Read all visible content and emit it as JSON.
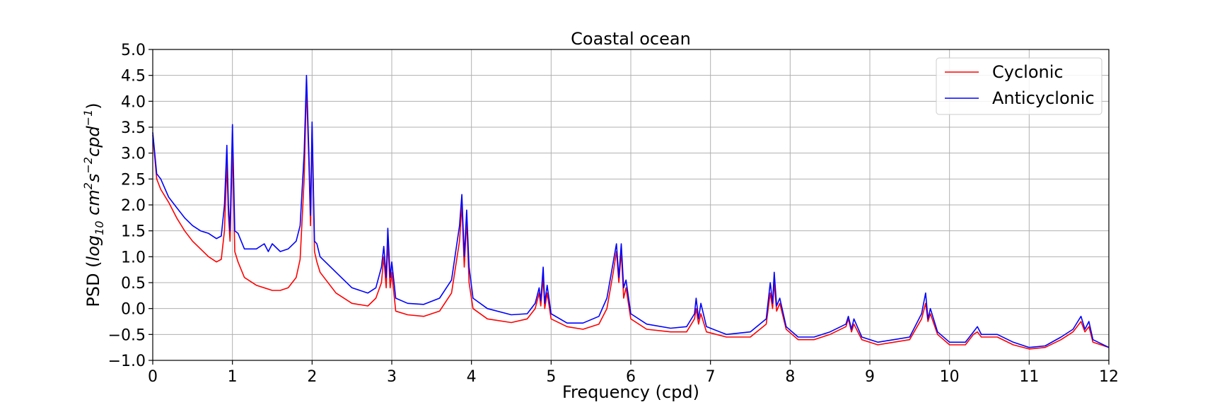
{
  "chart_data": {
    "type": "line",
    "title": "Coastal ocean",
    "xlabel": "Frequency (cpd)",
    "ylabel_prefix": "PSD (",
    "ylabel_log": "log",
    "ylabel_log_sub": "10",
    "ylabel_cm": " cm",
    "ylabel_cm_sup": "2",
    "ylabel_s": "s",
    "ylabel_s_sup": "−2",
    "ylabel_cpd": "cpd",
    "ylabel_cpd_sup": "−1",
    "ylabel_suffix": ")",
    "xlim": [
      0,
      12
    ],
    "ylim": [
      -1.0,
      5.0
    ],
    "grid": true,
    "legend_position": "top-right",
    "x_ticks": [
      0,
      1,
      2,
      3,
      4,
      5,
      6,
      7,
      8,
      9,
      10,
      11,
      12
    ],
    "x_tick_labels": [
      "0",
      "1",
      "2",
      "3",
      "4",
      "5",
      "6",
      "7",
      "8",
      "9",
      "10",
      "11",
      "12"
    ],
    "y_ticks": [
      -1.0,
      -0.5,
      0.0,
      0.5,
      1.0,
      1.5,
      2.0,
      2.5,
      3.0,
      3.5,
      4.0,
      4.5,
      5.0
    ],
    "y_tick_labels": [
      "−1.0",
      "−0.5",
      "0.0",
      "0.5",
      "1.0",
      "1.5",
      "2.0",
      "2.5",
      "3.0",
      "3.5",
      "4.0",
      "4.5",
      "5.0"
    ],
    "series": [
      {
        "name": "Cyclonic",
        "color": "#ff0000",
        "points": [
          [
            0.0,
            3.35
          ],
          [
            0.05,
            2.5
          ],
          [
            0.1,
            2.3
          ],
          [
            0.2,
            2.05
          ],
          [
            0.3,
            1.75
          ],
          [
            0.4,
            1.5
          ],
          [
            0.5,
            1.3
          ],
          [
            0.6,
            1.15
          ],
          [
            0.7,
            1.0
          ],
          [
            0.8,
            0.9
          ],
          [
            0.86,
            0.95
          ],
          [
            0.9,
            1.5
          ],
          [
            0.93,
            2.8
          ],
          [
            0.95,
            1.8
          ],
          [
            0.97,
            1.3
          ],
          [
            1.0,
            3.15
          ],
          [
            1.03,
            1.1
          ],
          [
            1.07,
            0.9
          ],
          [
            1.15,
            0.6
          ],
          [
            1.3,
            0.45
          ],
          [
            1.5,
            0.35
          ],
          [
            1.6,
            0.35
          ],
          [
            1.7,
            0.4
          ],
          [
            1.8,
            0.6
          ],
          [
            1.85,
            0.95
          ],
          [
            1.9,
            2.5
          ],
          [
            1.93,
            4.3
          ],
          [
            1.96,
            2.8
          ],
          [
            1.98,
            1.6
          ],
          [
            2.0,
            3.5
          ],
          [
            2.03,
            1.1
          ],
          [
            2.06,
            0.9
          ],
          [
            2.1,
            0.7
          ],
          [
            2.3,
            0.3
          ],
          [
            2.5,
            0.1
          ],
          [
            2.7,
            0.05
          ],
          [
            2.8,
            0.2
          ],
          [
            2.87,
            0.5
          ],
          [
            2.9,
            1.0
          ],
          [
            2.93,
            0.4
          ],
          [
            2.95,
            1.3
          ],
          [
            2.98,
            0.4
          ],
          [
            3.0,
            0.7
          ],
          [
            3.05,
            -0.05
          ],
          [
            3.2,
            -0.12
          ],
          [
            3.4,
            -0.15
          ],
          [
            3.6,
            -0.05
          ],
          [
            3.75,
            0.3
          ],
          [
            3.85,
            1.3
          ],
          [
            3.88,
            2.0
          ],
          [
            3.91,
            0.8
          ],
          [
            3.94,
            1.7
          ],
          [
            3.97,
            0.5
          ],
          [
            4.02,
            0.0
          ],
          [
            4.2,
            -0.2
          ],
          [
            4.5,
            -0.27
          ],
          [
            4.7,
            -0.2
          ],
          [
            4.8,
            0.0
          ],
          [
            4.85,
            0.3
          ],
          [
            4.87,
            0.05
          ],
          [
            4.9,
            0.6
          ],
          [
            4.92,
            0.0
          ],
          [
            4.95,
            0.3
          ],
          [
            5.0,
            -0.2
          ],
          [
            5.2,
            -0.35
          ],
          [
            5.4,
            -0.4
          ],
          [
            5.6,
            -0.3
          ],
          [
            5.7,
            0.0
          ],
          [
            5.78,
            0.7
          ],
          [
            5.82,
            1.1
          ],
          [
            5.85,
            0.5
          ],
          [
            5.88,
            1.1
          ],
          [
            5.91,
            0.2
          ],
          [
            5.94,
            0.4
          ],
          [
            6.0,
            -0.2
          ],
          [
            6.2,
            -0.4
          ],
          [
            6.5,
            -0.45
          ],
          [
            6.7,
            -0.45
          ],
          [
            6.8,
            -0.2
          ],
          [
            6.82,
            0.0
          ],
          [
            6.85,
            -0.3
          ],
          [
            6.88,
            -0.1
          ],
          [
            6.95,
            -0.45
          ],
          [
            7.2,
            -0.55
          ],
          [
            7.5,
            -0.55
          ],
          [
            7.7,
            -0.3
          ],
          [
            7.75,
            0.3
          ],
          [
            7.78,
            0.0
          ],
          [
            7.8,
            0.5
          ],
          [
            7.83,
            -0.05
          ],
          [
            7.87,
            0.1
          ],
          [
            7.95,
            -0.4
          ],
          [
            8.1,
            -0.6
          ],
          [
            8.3,
            -0.6
          ],
          [
            8.5,
            -0.5
          ],
          [
            8.7,
            -0.35
          ],
          [
            8.73,
            -0.2
          ],
          [
            8.77,
            -0.45
          ],
          [
            8.8,
            -0.3
          ],
          [
            8.9,
            -0.6
          ],
          [
            9.1,
            -0.7
          ],
          [
            9.3,
            -0.65
          ],
          [
            9.5,
            -0.6
          ],
          [
            9.65,
            -0.2
          ],
          [
            9.7,
            0.1
          ],
          [
            9.73,
            -0.25
          ],
          [
            9.76,
            -0.1
          ],
          [
            9.85,
            -0.5
          ],
          [
            10.0,
            -0.7
          ],
          [
            10.2,
            -0.7
          ],
          [
            10.3,
            -0.5
          ],
          [
            10.35,
            -0.45
          ],
          [
            10.4,
            -0.55
          ],
          [
            10.6,
            -0.55
          ],
          [
            10.8,
            -0.7
          ],
          [
            11.0,
            -0.78
          ],
          [
            11.2,
            -0.75
          ],
          [
            11.4,
            -0.6
          ],
          [
            11.55,
            -0.45
          ],
          [
            11.65,
            -0.25
          ],
          [
            11.7,
            -0.45
          ],
          [
            11.75,
            -0.35
          ],
          [
            11.8,
            -0.65
          ],
          [
            12.0,
            -0.75
          ]
        ]
      },
      {
        "name": "Anticyclonic",
        "color": "#0000ff",
        "points": [
          [
            0.0,
            3.4
          ],
          [
            0.05,
            2.6
          ],
          [
            0.1,
            2.5
          ],
          [
            0.2,
            2.15
          ],
          [
            0.3,
            1.95
          ],
          [
            0.4,
            1.75
          ],
          [
            0.5,
            1.6
          ],
          [
            0.6,
            1.5
          ],
          [
            0.7,
            1.45
          ],
          [
            0.8,
            1.35
          ],
          [
            0.86,
            1.4
          ],
          [
            0.9,
            2.0
          ],
          [
            0.93,
            3.15
          ],
          [
            0.95,
            2.0
          ],
          [
            0.97,
            1.5
          ],
          [
            1.0,
            3.55
          ],
          [
            1.03,
            1.5
          ],
          [
            1.07,
            1.45
          ],
          [
            1.15,
            1.15
          ],
          [
            1.3,
            1.15
          ],
          [
            1.4,
            1.25
          ],
          [
            1.45,
            1.1
          ],
          [
            1.5,
            1.25
          ],
          [
            1.6,
            1.1
          ],
          [
            1.7,
            1.15
          ],
          [
            1.8,
            1.3
          ],
          [
            1.85,
            1.6
          ],
          [
            1.9,
            3.0
          ],
          [
            1.93,
            4.5
          ],
          [
            1.96,
            3.0
          ],
          [
            1.98,
            1.8
          ],
          [
            2.0,
            3.6
          ],
          [
            2.03,
            1.3
          ],
          [
            2.06,
            1.25
          ],
          [
            2.1,
            1.0
          ],
          [
            2.3,
            0.7
          ],
          [
            2.5,
            0.4
          ],
          [
            2.7,
            0.3
          ],
          [
            2.8,
            0.4
          ],
          [
            2.87,
            0.8
          ],
          [
            2.9,
            1.2
          ],
          [
            2.93,
            0.6
          ],
          [
            2.95,
            1.55
          ],
          [
            2.98,
            0.6
          ],
          [
            3.0,
            0.9
          ],
          [
            3.05,
            0.2
          ],
          [
            3.2,
            0.1
          ],
          [
            3.4,
            0.08
          ],
          [
            3.6,
            0.2
          ],
          [
            3.75,
            0.55
          ],
          [
            3.85,
            1.6
          ],
          [
            3.88,
            2.2
          ],
          [
            3.91,
            1.0
          ],
          [
            3.94,
            1.9
          ],
          [
            3.97,
            0.8
          ],
          [
            4.02,
            0.2
          ],
          [
            4.2,
            0.0
          ],
          [
            4.5,
            -0.12
          ],
          [
            4.7,
            -0.1
          ],
          [
            4.8,
            0.1
          ],
          [
            4.85,
            0.4
          ],
          [
            4.87,
            0.15
          ],
          [
            4.9,
            0.8
          ],
          [
            4.92,
            0.1
          ],
          [
            4.95,
            0.45
          ],
          [
            5.0,
            -0.1
          ],
          [
            5.2,
            -0.28
          ],
          [
            5.4,
            -0.28
          ],
          [
            5.6,
            -0.15
          ],
          [
            5.7,
            0.2
          ],
          [
            5.78,
            0.9
          ],
          [
            5.82,
            1.25
          ],
          [
            5.85,
            0.6
          ],
          [
            5.88,
            1.25
          ],
          [
            5.91,
            0.4
          ],
          [
            5.94,
            0.55
          ],
          [
            6.0,
            -0.1
          ],
          [
            6.2,
            -0.3
          ],
          [
            6.5,
            -0.38
          ],
          [
            6.7,
            -0.35
          ],
          [
            6.8,
            -0.1
          ],
          [
            6.82,
            0.2
          ],
          [
            6.85,
            -0.2
          ],
          [
            6.88,
            0.1
          ],
          [
            6.95,
            -0.35
          ],
          [
            7.2,
            -0.5
          ],
          [
            7.5,
            -0.45
          ],
          [
            7.7,
            -0.2
          ],
          [
            7.75,
            0.5
          ],
          [
            7.78,
            0.1
          ],
          [
            7.8,
            0.7
          ],
          [
            7.83,
            0.05
          ],
          [
            7.87,
            0.2
          ],
          [
            7.95,
            -0.35
          ],
          [
            8.1,
            -0.55
          ],
          [
            8.3,
            -0.55
          ],
          [
            8.5,
            -0.45
          ],
          [
            8.7,
            -0.3
          ],
          [
            8.73,
            -0.15
          ],
          [
            8.77,
            -0.4
          ],
          [
            8.8,
            -0.2
          ],
          [
            8.9,
            -0.55
          ],
          [
            9.1,
            -0.65
          ],
          [
            9.3,
            -0.6
          ],
          [
            9.5,
            -0.55
          ],
          [
            9.65,
            -0.1
          ],
          [
            9.7,
            0.3
          ],
          [
            9.73,
            -0.2
          ],
          [
            9.76,
            0.0
          ],
          [
            9.85,
            -0.45
          ],
          [
            10.0,
            -0.65
          ],
          [
            10.2,
            -0.65
          ],
          [
            10.3,
            -0.45
          ],
          [
            10.35,
            -0.35
          ],
          [
            10.4,
            -0.5
          ],
          [
            10.6,
            -0.5
          ],
          [
            10.8,
            -0.65
          ],
          [
            11.0,
            -0.75
          ],
          [
            11.2,
            -0.72
          ],
          [
            11.4,
            -0.55
          ],
          [
            11.55,
            -0.4
          ],
          [
            11.65,
            -0.15
          ],
          [
            11.7,
            -0.4
          ],
          [
            11.75,
            -0.25
          ],
          [
            11.8,
            -0.6
          ],
          [
            12.0,
            -0.75
          ]
        ]
      }
    ]
  }
}
